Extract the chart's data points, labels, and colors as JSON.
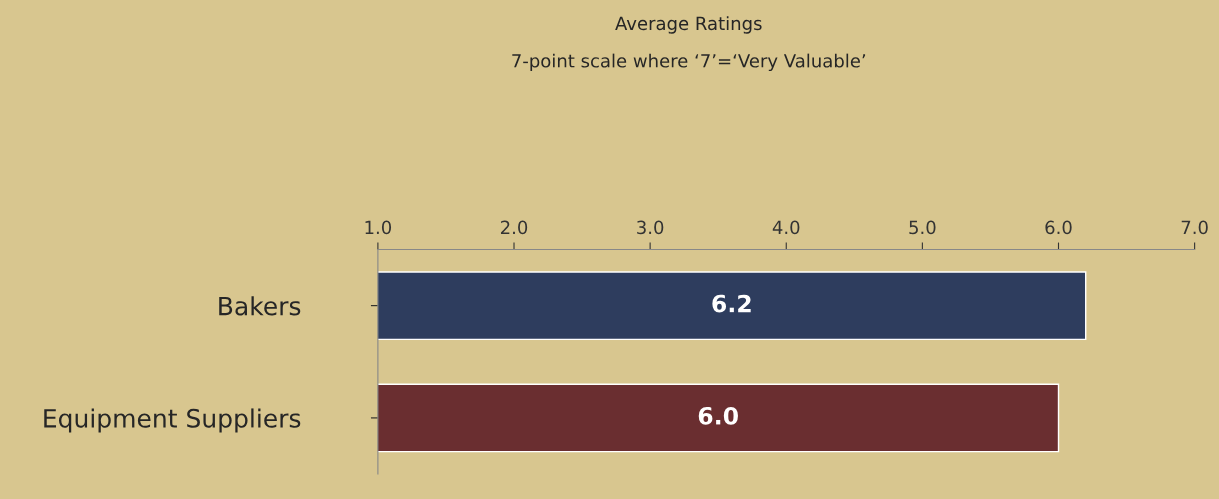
{
  "chart_data": {
    "type": "bar",
    "orientation": "horizontal",
    "title": "Average Ratings",
    "subtitle": "7-point scale where ‘7’=‘Very Valuable’",
    "categories": [
      "Bakers",
      "Equipment Suppliers"
    ],
    "values": [
      6.2,
      6.0
    ],
    "colors": [
      "#2e3d5e",
      "#6a2e30"
    ],
    "xlim": [
      1,
      7
    ],
    "xticks": [
      {
        "value": 1,
        "label": "1.0"
      },
      {
        "value": 2,
        "label": "2.0"
      },
      {
        "value": 3,
        "label": "3.0"
      },
      {
        "value": 4,
        "label": "4.0"
      },
      {
        "value": 5,
        "label": "5.0"
      },
      {
        "value": 6,
        "label": "6.0"
      },
      {
        "value": 7,
        "label": "7.0"
      }
    ],
    "value_labels": [
      "6.2",
      "6.0"
    ],
    "grid": false
  }
}
